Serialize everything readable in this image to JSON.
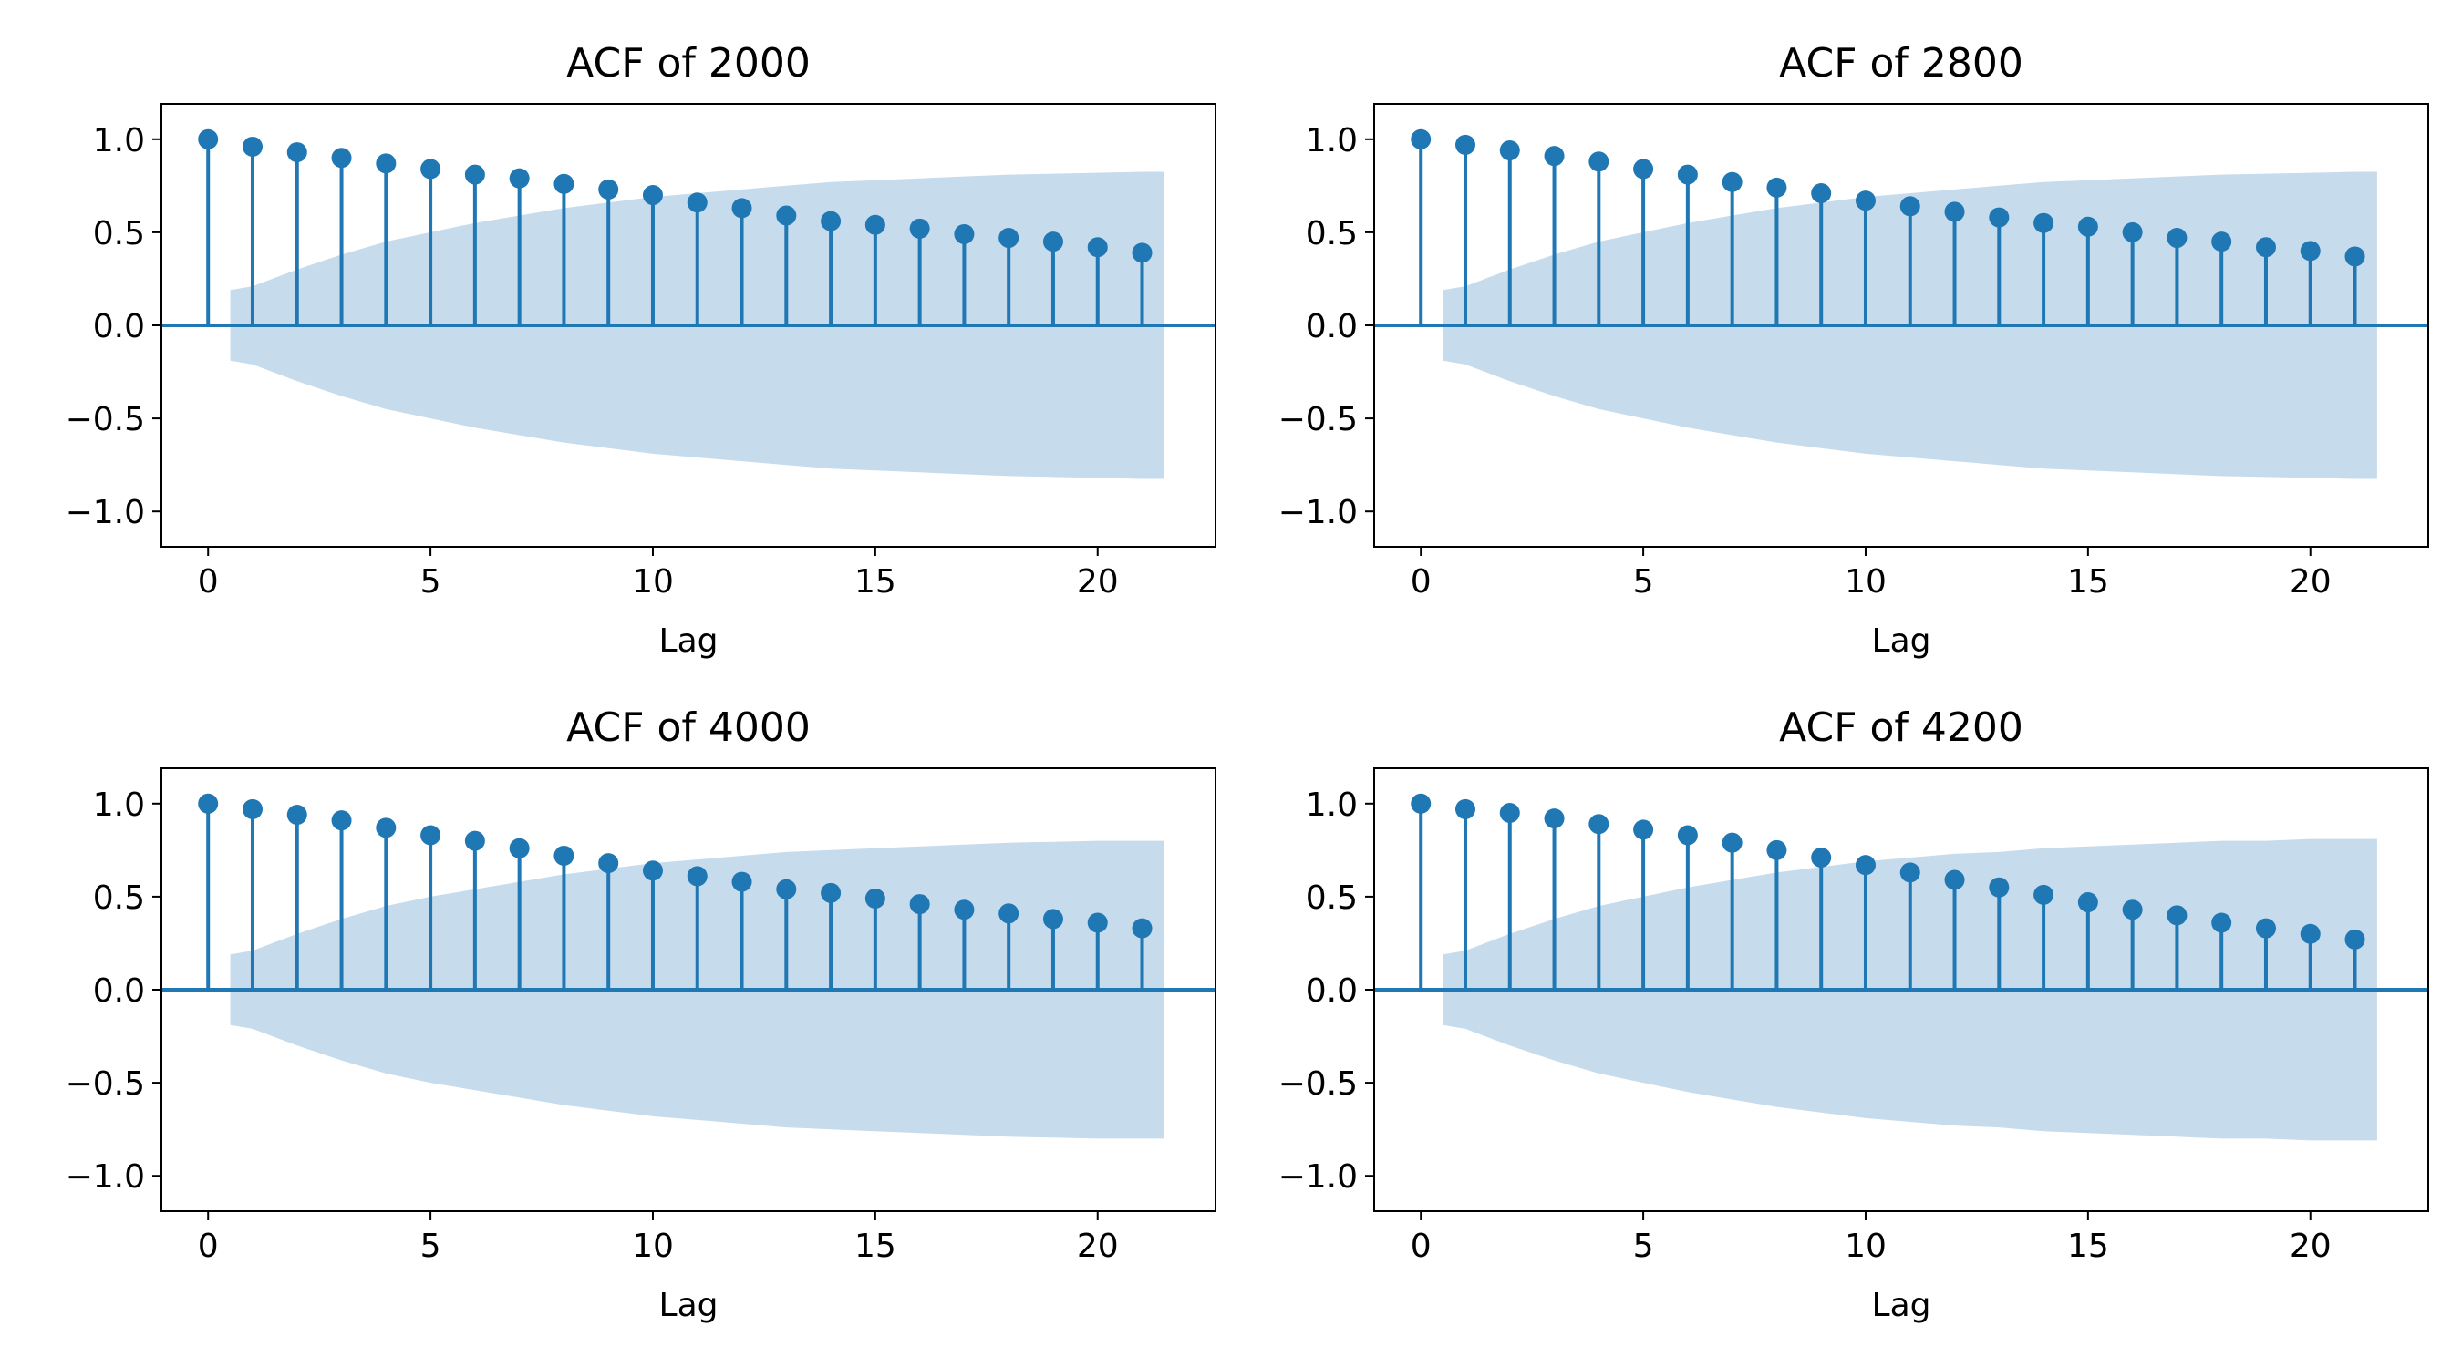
{
  "colors": {
    "stem": "#1f77b4",
    "band": "#c6dbec",
    "axes": "#000000",
    "background": "#ffffff"
  },
  "chart_data": [
    {
      "type": "stem",
      "title": "ACF of 2000",
      "xlabel": "Lag",
      "ylabel": "",
      "xlim": [
        -1.05,
        22.65
      ],
      "ylim": [
        -1.19,
        1.19
      ],
      "xticks": [
        0,
        5,
        10,
        15,
        20
      ],
      "yticks": [
        1.0,
        0.5,
        0.0,
        -0.5,
        -1.0
      ],
      "xtick_labels": [
        "0",
        "5",
        "10",
        "15",
        "20"
      ],
      "ytick_labels": [
        "1.0",
        "0.5",
        "0.0",
        "−0.5",
        "−1.0"
      ],
      "grid": false,
      "lags": [
        0,
        1,
        2,
        3,
        4,
        5,
        6,
        7,
        8,
        9,
        10,
        11,
        12,
        13,
        14,
        15,
        16,
        17,
        18,
        19,
        20,
        21
      ],
      "values": [
        1.0,
        0.96,
        0.93,
        0.9,
        0.87,
        0.84,
        0.81,
        0.79,
        0.76,
        0.73,
        0.7,
        0.66,
        0.63,
        0.59,
        0.56,
        0.54,
        0.52,
        0.49,
        0.47,
        0.45,
        0.42,
        0.39
      ],
      "confidence_band": {
        "lags": [
          0.5,
          1,
          2,
          3,
          4,
          5,
          6,
          7,
          8,
          9,
          10,
          11,
          12,
          13,
          14,
          15,
          16,
          17,
          18,
          19,
          20,
          21,
          21.5
        ],
        "upper": [
          0.19,
          0.21,
          0.3,
          0.38,
          0.45,
          0.5,
          0.55,
          0.59,
          0.63,
          0.66,
          0.69,
          0.71,
          0.73,
          0.75,
          0.77,
          0.78,
          0.79,
          0.8,
          0.81,
          0.815,
          0.82,
          0.825,
          0.825
        ]
      }
    },
    {
      "type": "stem",
      "title": "ACF of 2800",
      "xlabel": "Lag",
      "ylabel": "",
      "xlim": [
        -1.05,
        22.65
      ],
      "ylim": [
        -1.19,
        1.19
      ],
      "xticks": [
        0,
        5,
        10,
        15,
        20
      ],
      "yticks": [
        1.0,
        0.5,
        0.0,
        -0.5,
        -1.0
      ],
      "xtick_labels": [
        "0",
        "5",
        "10",
        "15",
        "20"
      ],
      "ytick_labels": [
        "1.0",
        "0.5",
        "0.0",
        "−0.5",
        "−1.0"
      ],
      "grid": false,
      "lags": [
        0,
        1,
        2,
        3,
        4,
        5,
        6,
        7,
        8,
        9,
        10,
        11,
        12,
        13,
        14,
        15,
        16,
        17,
        18,
        19,
        20,
        21
      ],
      "values": [
        1.0,
        0.97,
        0.94,
        0.91,
        0.88,
        0.84,
        0.81,
        0.77,
        0.74,
        0.71,
        0.67,
        0.64,
        0.61,
        0.58,
        0.55,
        0.53,
        0.5,
        0.47,
        0.45,
        0.42,
        0.4,
        0.37
      ],
      "confidence_band": {
        "lags": [
          0.5,
          1,
          2,
          3,
          4,
          5,
          6,
          7,
          8,
          9,
          10,
          11,
          12,
          13,
          14,
          15,
          16,
          17,
          18,
          19,
          20,
          21,
          21.5
        ],
        "upper": [
          0.19,
          0.21,
          0.3,
          0.38,
          0.45,
          0.5,
          0.55,
          0.59,
          0.63,
          0.66,
          0.69,
          0.71,
          0.73,
          0.75,
          0.77,
          0.78,
          0.79,
          0.8,
          0.81,
          0.815,
          0.82,
          0.825,
          0.825
        ]
      }
    },
    {
      "type": "stem",
      "title": "ACF of 4000",
      "xlabel": "Lag",
      "ylabel": "",
      "xlim": [
        -1.05,
        22.65
      ],
      "ylim": [
        -1.19,
        1.19
      ],
      "xticks": [
        0,
        5,
        10,
        15,
        20
      ],
      "yticks": [
        1.0,
        0.5,
        0.0,
        -0.5,
        -1.0
      ],
      "xtick_labels": [
        "0",
        "5",
        "10",
        "15",
        "20"
      ],
      "ytick_labels": [
        "1.0",
        "0.5",
        "0.0",
        "−0.5",
        "−1.0"
      ],
      "grid": false,
      "lags": [
        0,
        1,
        2,
        3,
        4,
        5,
        6,
        7,
        8,
        9,
        10,
        11,
        12,
        13,
        14,
        15,
        16,
        17,
        18,
        19,
        20,
        21
      ],
      "values": [
        1.0,
        0.97,
        0.94,
        0.91,
        0.87,
        0.83,
        0.8,
        0.76,
        0.72,
        0.68,
        0.64,
        0.61,
        0.58,
        0.54,
        0.52,
        0.49,
        0.46,
        0.43,
        0.41,
        0.38,
        0.36,
        0.33
      ],
      "confidence_band": {
        "lags": [
          0.5,
          1,
          2,
          3,
          4,
          5,
          6,
          7,
          8,
          9,
          10,
          11,
          12,
          13,
          14,
          15,
          16,
          17,
          18,
          19,
          20,
          21,
          21.5
        ],
        "upper": [
          0.19,
          0.21,
          0.3,
          0.38,
          0.45,
          0.5,
          0.54,
          0.58,
          0.62,
          0.65,
          0.68,
          0.7,
          0.72,
          0.74,
          0.75,
          0.76,
          0.77,
          0.78,
          0.79,
          0.795,
          0.8,
          0.8,
          0.8
        ]
      }
    },
    {
      "type": "stem",
      "title": "ACF of 4200",
      "xlabel": "Lag",
      "ylabel": "",
      "xlim": [
        -1.05,
        22.65
      ],
      "ylim": [
        -1.19,
        1.19
      ],
      "xticks": [
        0,
        5,
        10,
        15,
        20
      ],
      "yticks": [
        1.0,
        0.5,
        0.0,
        -0.5,
        -1.0
      ],
      "xtick_labels": [
        "0",
        "5",
        "10",
        "15",
        "20"
      ],
      "ytick_labels": [
        "1.0",
        "0.5",
        "0.0",
        "−0.5",
        "−1.0"
      ],
      "grid": false,
      "lags": [
        0,
        1,
        2,
        3,
        4,
        5,
        6,
        7,
        8,
        9,
        10,
        11,
        12,
        13,
        14,
        15,
        16,
        17,
        18,
        19,
        20,
        21
      ],
      "values": [
        1.0,
        0.97,
        0.95,
        0.92,
        0.89,
        0.86,
        0.83,
        0.79,
        0.75,
        0.71,
        0.67,
        0.63,
        0.59,
        0.55,
        0.51,
        0.47,
        0.43,
        0.4,
        0.36,
        0.33,
        0.3,
        0.27
      ],
      "confidence_band": {
        "lags": [
          0.5,
          1,
          2,
          3,
          4,
          5,
          6,
          7,
          8,
          9,
          10,
          11,
          12,
          13,
          14,
          15,
          16,
          17,
          18,
          19,
          20,
          21,
          21.5
        ],
        "upper": [
          0.19,
          0.21,
          0.3,
          0.38,
          0.45,
          0.5,
          0.55,
          0.59,
          0.63,
          0.66,
          0.69,
          0.71,
          0.73,
          0.74,
          0.76,
          0.77,
          0.78,
          0.79,
          0.8,
          0.8,
          0.81,
          0.81,
          0.81
        ]
      }
    }
  ]
}
